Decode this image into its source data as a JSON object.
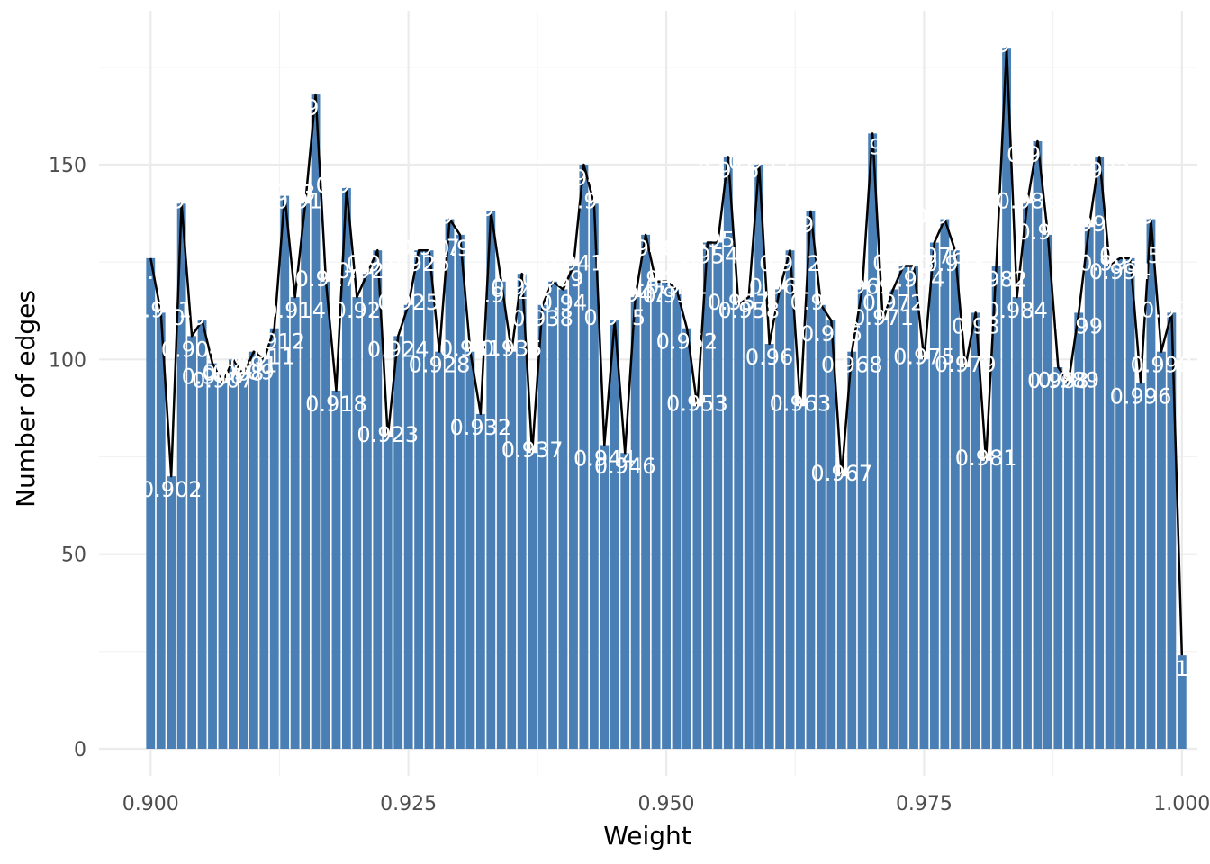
{
  "chart_data": {
    "type": "bar",
    "xlabel": "Weight",
    "ylabel": "Number of edges",
    "xlim": [
      0.895,
      1.0015
    ],
    "ylim": [
      0,
      182
    ],
    "x_ticks": [
      "0.900",
      "0.925",
      "0.950",
      "0.975",
      "1.000"
    ],
    "y_ticks": [
      "0",
      "50",
      "100",
      "150"
    ],
    "grid": true,
    "bar_color": "#4a7fb5",
    "line_color": "#000000",
    "label_color": "#ffffff",
    "x": [
      0.9,
      0.901,
      0.902,
      0.903,
      0.904,
      0.905,
      0.906,
      0.907,
      0.908,
      0.909,
      0.91,
      0.911,
      0.912,
      0.913,
      0.914,
      0.915,
      0.916,
      0.917,
      0.918,
      0.919,
      0.92,
      0.921,
      0.922,
      0.923,
      0.924,
      0.925,
      0.926,
      0.927,
      0.928,
      0.929,
      0.93,
      0.931,
      0.932,
      0.933,
      0.934,
      0.935,
      0.936,
      0.937,
      0.938,
      0.939,
      0.94,
      0.941,
      0.942,
      0.943,
      0.944,
      0.945,
      0.946,
      0.947,
      0.948,
      0.949,
      0.95,
      0.951,
      0.952,
      0.953,
      0.954,
      0.955,
      0.956,
      0.957,
      0.958,
      0.959,
      0.96,
      0.961,
      0.962,
      0.963,
      0.964,
      0.965,
      0.966,
      0.967,
      0.968,
      0.969,
      0.97,
      0.971,
      0.972,
      0.973,
      0.974,
      0.975,
      0.976,
      0.977,
      0.978,
      0.979,
      0.98,
      0.981,
      0.982,
      0.983,
      0.984,
      0.985,
      0.986,
      0.987,
      0.988,
      0.989,
      0.99,
      0.991,
      0.992,
      0.993,
      0.994,
      0.995,
      0.996,
      0.997,
      0.998,
      0.999,
      1.0
    ],
    "values": [
      126,
      112,
      70,
      140,
      106,
      110,
      99,
      94,
      100,
      96,
      102,
      100,
      108,
      142,
      116,
      140,
      168,
      120,
      92,
      144,
      116,
      122,
      128,
      80,
      106,
      114,
      128,
      128,
      102,
      136,
      132,
      102,
      86,
      138,
      120,
      102,
      122,
      76,
      114,
      120,
      118,
      124,
      150,
      140,
      78,
      110,
      76,
      116,
      132,
      120,
      120,
      118,
      108,
      88,
      130,
      130,
      152,
      114,
      116,
      150,
      104,
      118,
      128,
      88,
      138,
      114,
      110,
      70,
      102,
      118,
      158,
      110,
      118,
      124,
      124,
      100,
      130,
      136,
      128,
      98,
      112,
      74,
      124,
      180,
      116,
      140,
      156,
      132,
      98,
      94,
      112,
      134,
      152,
      124,
      126,
      126,
      94,
      136,
      102,
      112,
      24
    ],
    "labels": [
      "0.9",
      "0.901",
      "0.902",
      "0.903",
      "0.904",
      "0.905",
      "0.906",
      "0.907",
      "0.908",
      "0.909",
      "0.91",
      "0.911",
      "0.912",
      "0.913",
      "0.914",
      "0.915",
      "0.916",
      "0.917",
      "0.918",
      "0.919",
      "0.92",
      "0.921",
      "0.922",
      "0.923",
      "0.924",
      "0.925",
      "0.926",
      "0.927",
      "0.928",
      "0.929",
      "0.93",
      "0.931",
      "0.932",
      "0.933",
      "0.934",
      "0.935",
      "0.936",
      "0.937",
      "0.938",
      "0.939",
      "0.94",
      "0.941",
      "0.942",
      "0.943",
      "0.944",
      "0.945",
      "0.946",
      "0.947",
      "0.948",
      "0.949",
      "0.95",
      "0.951",
      "0.952",
      "0.953",
      "0.954",
      "0.955",
      "0.956",
      "0.957",
      "0.958",
      "0.959",
      "0.96",
      "0.961",
      "0.962",
      "0.963",
      "0.964",
      "0.965",
      "0.966",
      "0.967",
      "0.968",
      "0.969",
      "0.97",
      "0.971",
      "0.972",
      "0.973",
      "0.974",
      "0.975",
      "0.976",
      "0.977",
      "0.978",
      "0.979",
      "0.98",
      "0.981",
      "0.982",
      "0.983",
      "0.984",
      "0.985",
      "0.986",
      "0.987",
      "0.988",
      "0.989",
      "0.99",
      "0.991",
      "0.992",
      "0.993",
      "0.994",
      "0.995",
      "0.996",
      "0.997",
      "0.998",
      "0.999",
      "1"
    ]
  }
}
